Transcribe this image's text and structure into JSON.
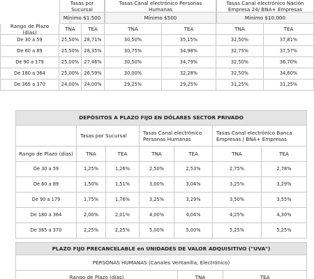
{
  "table1": {
    "groups": [
      {
        "title": "Tasas por Sucursal",
        "minimum": "Mínimo $1.500"
      },
      {
        "title": "Tasas Canal electrónico Personas Humanas",
        "minimum": "Mínimo $500"
      },
      {
        "title": "Tasas Canal electrónico Nación Empresa 24/ BNA+ Empresas",
        "minimum": "Mínimo $10.000"
      }
    ],
    "header": [
      "Rango de Plazo (días)",
      "TNA",
      "TEA",
      "TNA",
      "TEA",
      "TNA",
      "TEA"
    ],
    "rows": [
      [
        "De 30 a 59",
        "25,50%",
        "28,71%",
        "30,50%",
        "35,15%",
        "32,50%",
        "37,81%"
      ],
      [
        "De 60 a 89",
        "25,50%",
        "28,35%",
        "30,75%",
        "34,98%",
        "32,75%",
        "37,57%"
      ],
      [
        "De 90 a 179",
        "25,00%",
        "27,46%",
        "30,50%",
        "34,79%",
        "32,50%",
        "36,70%"
      ],
      [
        "De 180 a 364",
        "25,00%",
        "26,59%",
        "30,00%",
        "32,28%",
        "32,50%",
        "34,60%"
      ],
      [
        "De 365 a 370",
        "24,00%",
        "24,00%",
        "29,25%",
        "29,25%",
        "31,25%",
        "31,25%"
      ]
    ]
  },
  "table2": {
    "title": "DEPÓSITOS A PLAZO FIJO EN DÓLARES SECTOR PRIVADO",
    "groups": [
      "Tasas por Sucursal",
      "Tasas Canal electrónico Personas Humanas",
      "Tasas Canal electrónico Banca Empresas | BNA+ Empresas"
    ],
    "header": [
      "Rango de Plazo (días)",
      "TNA",
      "TEA",
      "TNA",
      "TEA",
      "TNA",
      "TEA"
    ],
    "rows": [
      [
        "De 30 a 59",
        "1,25%",
        "1,26%",
        "2,50%",
        "2,53%",
        "2,75%",
        "2,78%"
      ],
      [
        "De 60 a 89",
        "1,50%",
        "1,51%",
        "3,00%",
        "3,04%",
        "3,25%",
        "3,29%"
      ],
      [
        "De 90 a 179",
        "1,75%",
        "1,76%",
        "3,25%",
        "3,29%",
        "3,50%",
        "3,55%"
      ],
      [
        "De 180 a 364",
        "2,00%",
        "2,01%",
        "4,00%",
        "4,04%",
        "4,25%",
        "4,30%"
      ],
      [
        "De 365 a 370",
        "2,25%",
        "2,25%",
        "5,00%",
        "5,00%",
        "5,25%",
        "5,25%"
      ]
    ]
  },
  "table3": {
    "title": "PLAZO FIJO PRECANCELABLE en UNIDADES DE VALOR ADQUISITIVO (\"UVA\")",
    "subtitle": "PERSONAS HUMANAS (Canales Ventanilla, Electrónico)",
    "header": [
      "Rango de Plazo (días)",
      "TNA",
      "TEA"
    ]
  }
}
